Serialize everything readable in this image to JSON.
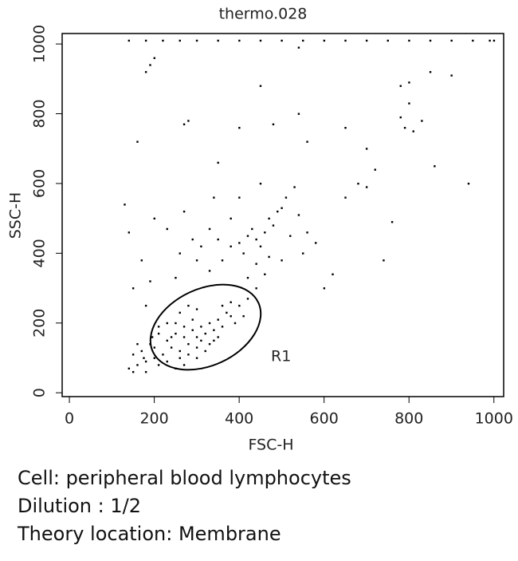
{
  "chart_data": {
    "type": "scatter",
    "title": "thermo.028",
    "x_label": "FSC-H",
    "y_label": "SSC-H",
    "color": "#000000",
    "annotations": [
      "R1"
    ],
    "x": [
      230,
      250,
      270,
      290,
      310,
      330,
      280,
      300,
      260,
      240,
      320,
      350,
      370,
      340,
      300,
      270,
      250,
      290,
      310,
      330,
      220,
      200,
      180,
      160,
      150,
      170,
      190,
      210,
      230,
      260,
      280,
      300,
      360,
      380,
      400,
      410,
      390,
      360,
      230,
      260,
      280,
      320,
      340,
      200,
      240,
      150,
      160,
      140,
      180,
      210,
      420,
      440,
      300,
      270,
      250,
      350,
      380,
      210,
      195,
      175,
      400,
      420,
      440,
      460,
      450,
      430,
      410,
      470,
      480,
      490,
      500,
      470,
      440,
      380,
      360,
      350,
      520,
      540,
      510,
      530,
      450,
      400,
      380,
      330,
      310,
      290,
      300,
      420,
      460,
      500,
      560,
      550,
      330,
      260,
      250,
      230,
      200,
      270,
      340,
      580,
      130,
      150,
      140,
      170,
      180,
      190,
      600,
      620,
      650,
      680,
      700,
      720,
      740,
      760,
      780,
      800,
      790,
      810,
      830,
      780,
      850,
      900,
      940,
      860,
      700,
      650,
      560,
      540,
      450,
      480,
      400,
      350,
      280,
      270,
      200,
      190,
      180,
      160,
      540,
      800,
      140,
      180,
      220,
      260,
      300,
      350,
      400,
      450,
      500,
      550,
      600,
      650,
      700,
      750,
      800,
      850,
      900,
      950,
      990,
      1000
    ],
    "values": [
      150,
      170,
      160,
      180,
      190,
      200,
      140,
      130,
      120,
      130,
      170,
      210,
      230,
      180,
      160,
      190,
      200,
      210,
      150,
      140,
      110,
      100,
      90,
      80,
      60,
      120,
      140,
      170,
      200,
      230,
      250,
      240,
      250,
      260,
      250,
      220,
      200,
      190,
      90,
      100,
      110,
      120,
      150,
      130,
      160,
      110,
      140,
      70,
      60,
      80,
      270,
      300,
      100,
      80,
      70,
      160,
      220,
      190,
      160,
      100,
      430,
      450,
      440,
      460,
      420,
      470,
      400,
      500,
      480,
      520,
      530,
      390,
      370,
      420,
      380,
      440,
      450,
      510,
      560,
      590,
      600,
      560,
      500,
      470,
      420,
      440,
      380,
      330,
      340,
      380,
      460,
      400,
      350,
      400,
      330,
      470,
      500,
      520,
      560,
      430,
      540,
      300,
      460,
      380,
      250,
      320,
      300,
      340,
      560,
      600,
      590,
      640,
      380,
      490,
      790,
      830,
      760,
      750,
      780,
      880,
      920,
      910,
      600,
      650,
      700,
      760,
      720,
      800,
      880,
      770,
      760,
      660,
      780,
      770,
      960,
      940,
      920,
      720,
      990,
      890,
      1010,
      1010,
      1010,
      1010,
      1010,
      1010,
      1010,
      1010,
      1010,
      1010,
      1010,
      1010,
      1010,
      1010,
      1010,
      1010,
      1010,
      1010,
      1010,
      1010
    ],
    "xlim": [
      -17,
      1023
    ],
    "ylim": [
      -11,
      1030
    ],
    "xticks": [
      0,
      200,
      400,
      600,
      800,
      1000
    ],
    "yticks": [
      0,
      200,
      400,
      600,
      800,
      1000
    ]
  },
  "caption": [
    "Cell: peripheral blood lymphocytes",
    "Dilution : 1/2",
    "Theory location: Membrane"
  ]
}
